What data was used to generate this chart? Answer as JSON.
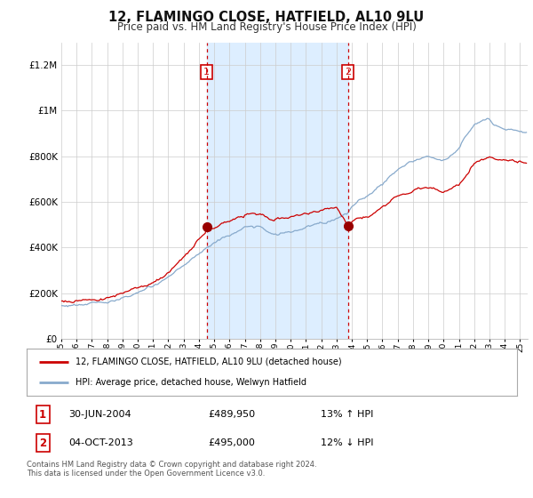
{
  "title": "12, FLAMINGO CLOSE, HATFIELD, AL10 9LU",
  "subtitle": "Price paid vs. HM Land Registry's House Price Index (HPI)",
  "ylim": [
    0,
    1300000
  ],
  "yticks": [
    0,
    200000,
    400000,
    600000,
    800000,
    1000000,
    1200000
  ],
  "sale1_date": "30-JUN-2004",
  "sale1_price": 489950,
  "sale1_hpi": "13% ↑ HPI",
  "sale2_date": "04-OCT-2013",
  "sale2_price": 495000,
  "sale2_hpi": "12% ↓ HPI",
  "legend_line1": "12, FLAMINGO CLOSE, HATFIELD, AL10 9LU (detached house)",
  "legend_line2": "HPI: Average price, detached house, Welwyn Hatfield",
  "footer": "Contains HM Land Registry data © Crown copyright and database right 2024.\nThis data is licensed under the Open Government Licence v3.0.",
  "line_color_house": "#cc0000",
  "line_color_hpi": "#88aacc",
  "shade_color": "#ddeeff",
  "sale_marker_color": "#990000",
  "vline_color": "#cc0000",
  "box_color": "#cc0000",
  "bg_color": "#ffffff",
  "grid_color": "#cccccc",
  "sale1_year": 2004.5,
  "sale2_year": 2013.75,
  "xstart": 1995.0,
  "xend": 2025.5
}
